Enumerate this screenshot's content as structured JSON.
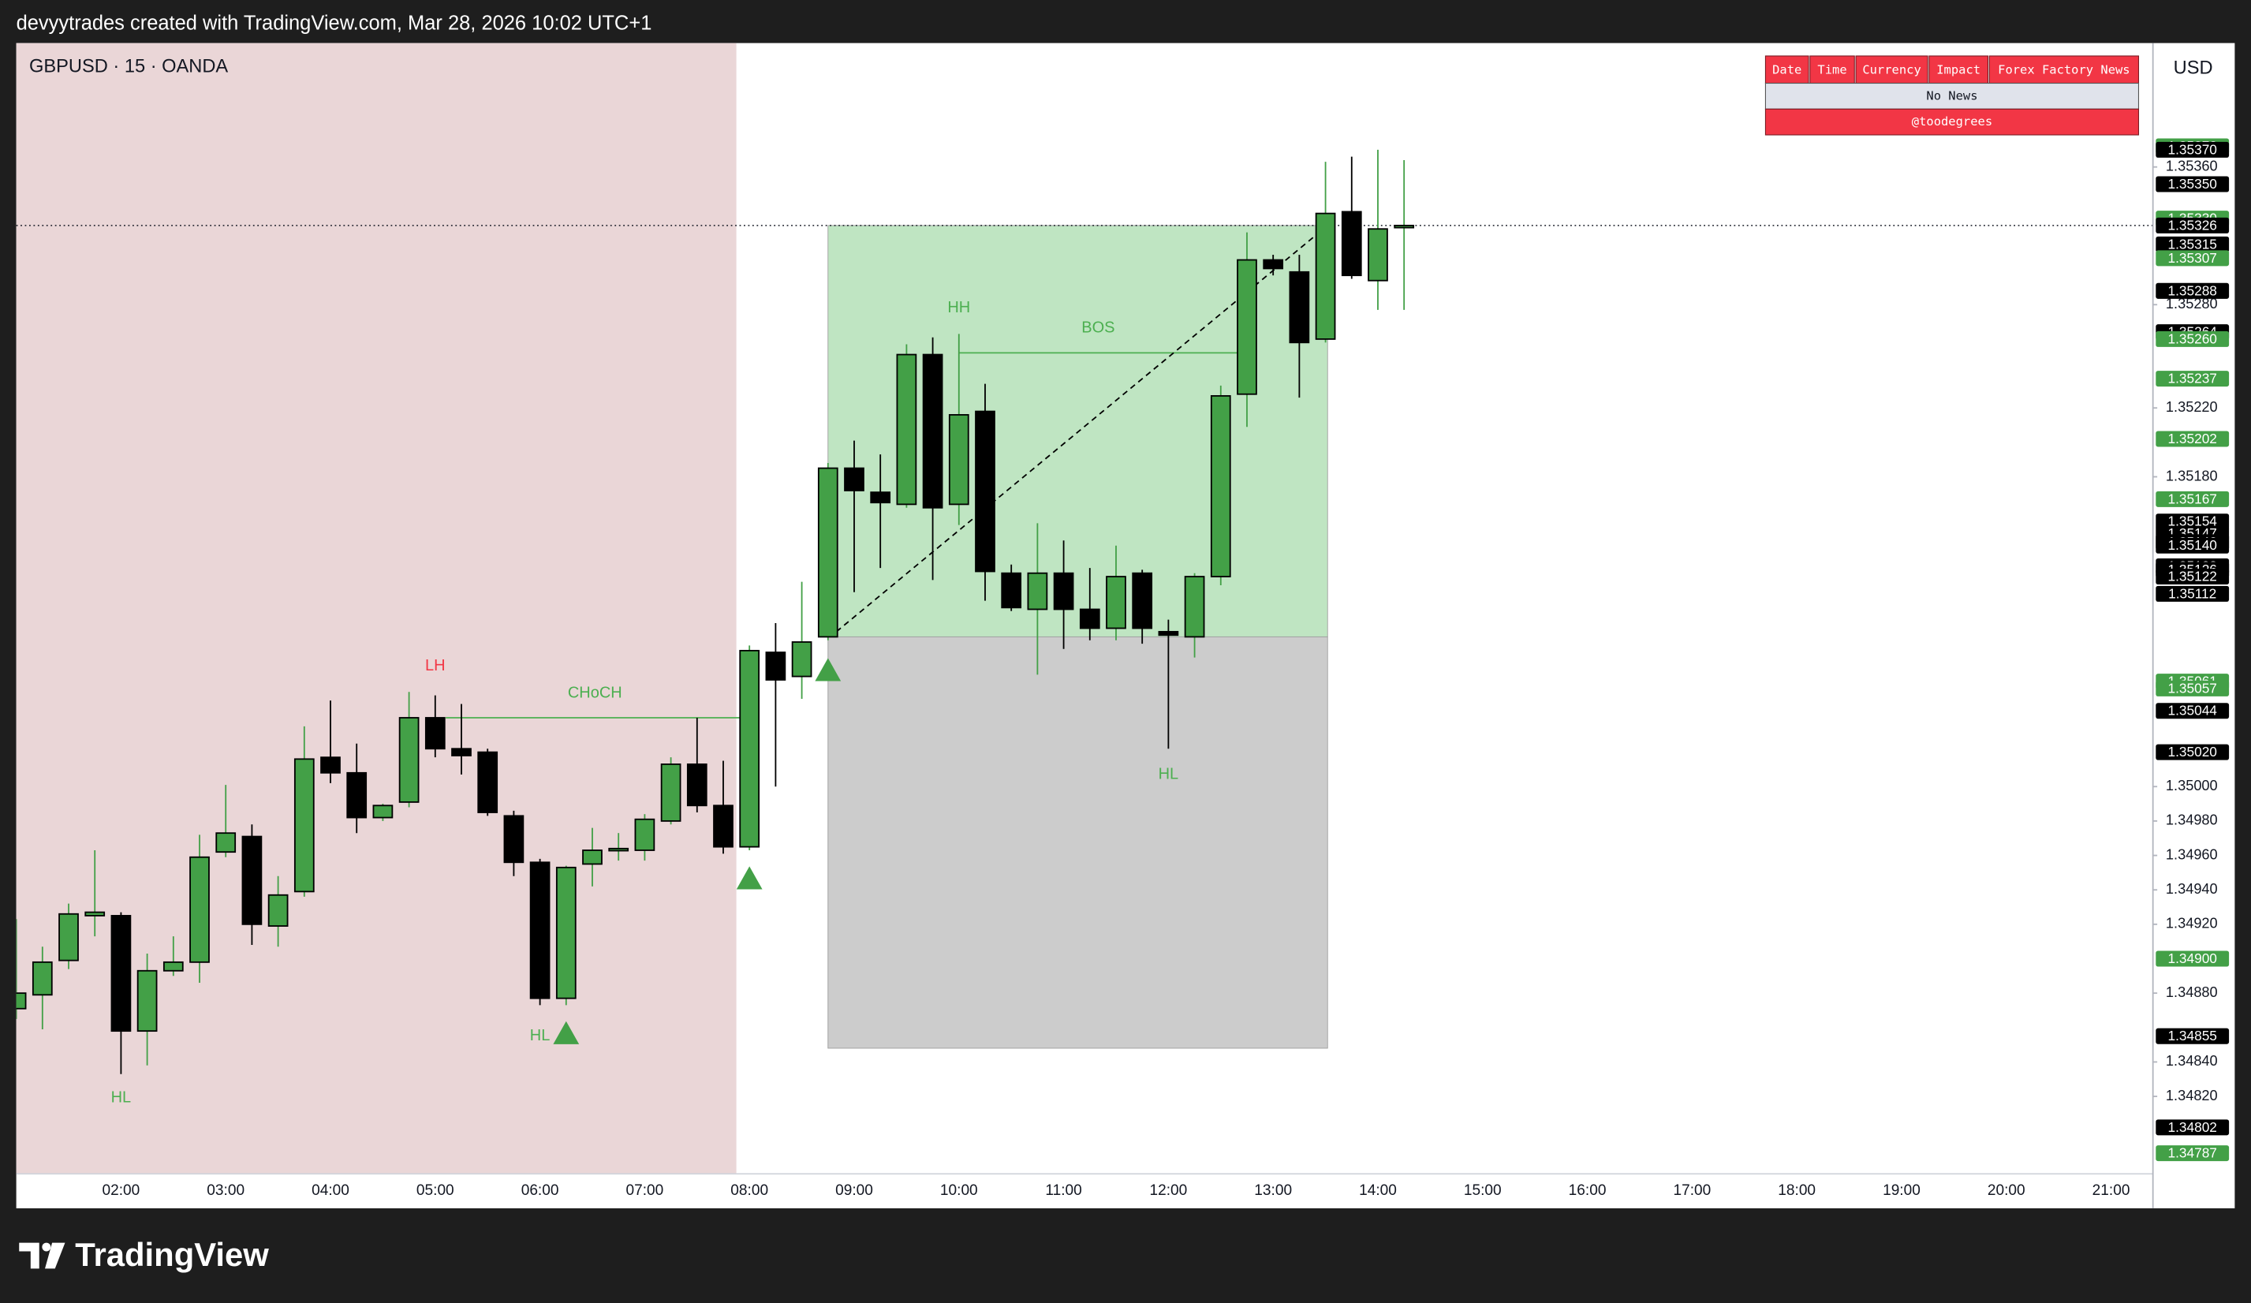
{
  "header": "devyytrades created with TradingView.com, Mar 28, 2026 10:02 UTC+1",
  "footer_brand": "TradingView",
  "news_table": {
    "header": [
      "Date",
      "Time",
      "Currency",
      "Impact",
      "Forex Factory News"
    ],
    "message": "No News",
    "credit": "@toodegrees"
  },
  "chart_data": {
    "type": "candlestick",
    "title": "GBPUSD · 15 · OANDA",
    "currency": "USD",
    "up_color": "#43a047",
    "down_color": "#000000",
    "grid": false,
    "xlim": [
      1,
      21.4
    ],
    "ylim": [
      1.34775,
      1.35432
    ],
    "xticks": [
      {
        "value": 2,
        "label": "02:00"
      },
      {
        "value": 3,
        "label": "03:00"
      },
      {
        "value": 4,
        "label": "04:00"
      },
      {
        "value": 5,
        "label": "05:00"
      },
      {
        "value": 6,
        "label": "06:00"
      },
      {
        "value": 7,
        "label": "07:00"
      },
      {
        "value": 8,
        "label": "08:00"
      },
      {
        "value": 9,
        "label": "09:00"
      },
      {
        "value": 10,
        "label": "10:00"
      },
      {
        "value": 11,
        "label": "11:00"
      },
      {
        "value": 12,
        "label": "12:00"
      },
      {
        "value": 13,
        "label": "13:00"
      },
      {
        "value": 14,
        "label": "14:00"
      },
      {
        "value": 15,
        "label": "15:00"
      },
      {
        "value": 16,
        "label": "16:00"
      },
      {
        "value": 17,
        "label": "17:00"
      },
      {
        "value": 18,
        "label": "18:00"
      },
      {
        "value": 19,
        "label": "19:00"
      },
      {
        "value": 20,
        "label": "20:00"
      },
      {
        "value": 21,
        "label": "21:00"
      }
    ],
    "yticks": [
      {
        "value": 1.3536,
        "label": "1.35360"
      },
      {
        "value": 1.3528,
        "label": "1.35280"
      },
      {
        "value": 1.3522,
        "label": "1.35220"
      },
      {
        "value": 1.3518,
        "label": "1.35180"
      },
      {
        "value": 1.35,
        "label": "1.35000"
      },
      {
        "value": 1.3498,
        "label": "1.34980"
      },
      {
        "value": 1.3496,
        "label": "1.34960"
      },
      {
        "value": 1.3494,
        "label": "1.34940"
      },
      {
        "value": 1.3492,
        "label": "1.34920"
      },
      {
        "value": 1.3488,
        "label": "1.34880"
      },
      {
        "value": 1.3484,
        "label": "1.34840"
      },
      {
        "value": 1.3482,
        "label": "1.34820"
      }
    ],
    "x": [
      1,
      1.25,
      1.5,
      1.75,
      2,
      2.25,
      2.5,
      2.75,
      3,
      3.25,
      3.5,
      3.75,
      4,
      4.25,
      4.5,
      4.75,
      5,
      5.25,
      5.5,
      5.75,
      6,
      6.25,
      6.5,
      6.75,
      7,
      7.25,
      7.5,
      7.75,
      8,
      8.25,
      8.5,
      8.75,
      9,
      9.25,
      9.5,
      9.75,
      10,
      10.25,
      10.5,
      10.75,
      11,
      11.25,
      11.5,
      11.75,
      12,
      12.25,
      12.5,
      12.75,
      13,
      13.25,
      13.5,
      13.75,
      14,
      14.25
    ],
    "open": [
      1.34871,
      1.34879,
      1.34899,
      1.34925,
      1.34925,
      1.34858,
      1.34893,
      1.34898,
      1.34962,
      1.34971,
      1.34919,
      1.34939,
      1.35017,
      1.35008,
      1.34982,
      1.34991,
      1.3504,
      1.35022,
      1.3502,
      1.34983,
      1.34956,
      1.34877,
      1.34955,
      1.34963,
      1.34963,
      1.3498,
      1.35013,
      1.34989,
      1.34965,
      1.35078,
      1.35064,
      1.35087,
      1.35185,
      1.35171,
      1.35164,
      1.35251,
      1.35164,
      1.35218,
      1.35124,
      1.35103,
      1.35124,
      1.35103,
      1.35092,
      1.35124,
      1.3509,
      1.35087,
      1.35122,
      1.35228,
      1.35306,
      1.35299,
      1.3526,
      1.35334,
      1.35294,
      1.35325
    ],
    "high": [
      1.34923,
      1.34907,
      1.34932,
      1.34963,
      1.34927,
      1.34903,
      1.34913,
      1.34972,
      1.35001,
      1.34978,
      1.34948,
      1.35035,
      1.3505,
      1.35025,
      1.3499,
      1.35055,
      1.35053,
      1.35048,
      1.35022,
      1.34986,
      1.34958,
      1.34954,
      1.34976,
      1.34973,
      1.34984,
      1.35017,
      1.3504,
      1.35015,
      1.35082,
      1.35095,
      1.35119,
      1.35188,
      1.35201,
      1.35193,
      1.35257,
      1.35261,
      1.35263,
      1.35234,
      1.35129,
      1.35153,
      1.35143,
      1.35127,
      1.3514,
      1.35126,
      1.35097,
      1.35124,
      1.35233,
      1.35322,
      1.35309,
      1.35309,
      1.35363,
      1.35366,
      1.3537,
      1.35364
    ],
    "low": [
      1.34865,
      1.34859,
      1.34894,
      1.34913,
      1.34833,
      1.34838,
      1.3489,
      1.34886,
      1.34959,
      1.34908,
      1.34907,
      1.34936,
      1.35002,
      1.34973,
      1.3498,
      1.34988,
      1.35017,
      1.35007,
      1.34983,
      1.34948,
      1.34873,
      1.34873,
      1.34942,
      1.34957,
      1.34957,
      1.34978,
      1.34985,
      1.34961,
      1.34963,
      1.35,
      1.35051,
      1.35085,
      1.35113,
      1.35127,
      1.35162,
      1.3512,
      1.35152,
      1.35108,
      1.35102,
      1.35065,
      1.3508,
      1.35085,
      1.35085,
      1.35083,
      1.35022,
      1.35075,
      1.35117,
      1.35209,
      1.35297,
      1.35226,
      1.35258,
      1.35295,
      1.35277,
      1.35277
    ],
    "close": [
      1.3488,
      1.34898,
      1.34926,
      1.34927,
      1.34858,
      1.34893,
      1.34898,
      1.34959,
      1.34973,
      1.3492,
      1.34937,
      1.35016,
      1.35008,
      1.34982,
      1.34989,
      1.3504,
      1.35022,
      1.35018,
      1.34985,
      1.34956,
      1.34877,
      1.34953,
      1.34963,
      1.34964,
      1.34981,
      1.35013,
      1.34989,
      1.34965,
      1.35079,
      1.35062,
      1.35084,
      1.35185,
      1.35172,
      1.35165,
      1.35251,
      1.35162,
      1.35216,
      1.35125,
      1.35104,
      1.35124,
      1.35103,
      1.35092,
      1.35122,
      1.35092,
      1.35088,
      1.35122,
      1.35227,
      1.35306,
      1.35301,
      1.35258,
      1.35333,
      1.35297,
      1.35324,
      1.35326
    ],
    "price_labels": [
      {
        "value": 1.35372,
        "color": "#43a047"
      },
      {
        "value": 1.3537,
        "label": "1.35370",
        "color": "#000000"
      },
      {
        "value": 1.3535,
        "label": "1.35350",
        "color": "#000000"
      },
      {
        "value": 1.3533,
        "label": "1.35330",
        "color": "#43a047"
      },
      {
        "value": 1.35326,
        "color": "#000000"
      },
      {
        "value": 1.35315,
        "color": "#000000"
      },
      {
        "value": 1.35307,
        "color": "#43a047"
      },
      {
        "value": 1.35288,
        "color": "#000000"
      },
      {
        "value": 1.35264,
        "color": "#000000"
      },
      {
        "value": 1.3526,
        "label": "1.35260",
        "color": "#43a047"
      },
      {
        "value": 1.35237,
        "color": "#43a047"
      },
      {
        "value": 1.35202,
        "color": "#43a047"
      },
      {
        "value": 1.35167,
        "color": "#43a047"
      },
      {
        "value": 1.35154,
        "color": "#000000"
      },
      {
        "value": 1.35147,
        "color": "#000000"
      },
      {
        "value": 1.35142,
        "color": "#000000"
      },
      {
        "value": 1.3514,
        "label": "1.35140",
        "color": "#000000"
      },
      {
        "value": 1.35128,
        "color": "#000000"
      },
      {
        "value": 1.35126,
        "color": "#000000"
      },
      {
        "value": 1.35122,
        "color": "#000000"
      },
      {
        "value": 1.35112,
        "color": "#000000"
      },
      {
        "value": 1.35061,
        "color": "#43a047"
      },
      {
        "value": 1.35057,
        "color": "#43a047"
      },
      {
        "value": 1.35044,
        "color": "#000000"
      },
      {
        "value": 1.3502,
        "label": "1.35020",
        "color": "#000000"
      },
      {
        "value": 1.349,
        "label": "1.34900",
        "color": "#43a047"
      },
      {
        "value": 1.34855,
        "color": "#000000"
      },
      {
        "value": 1.34802,
        "color": "#000000"
      },
      {
        "value": 1.34787,
        "color": "#43a047"
      }
    ],
    "session_shade": {
      "x": [
        1,
        7.875
      ],
      "color": "#ead6d7"
    },
    "boxes": [
      {
        "x": [
          8.75,
          13.52
        ],
        "y": [
          1.35087,
          1.35326
        ],
        "color": "#bfe5c2"
      },
      {
        "x": [
          8.75,
          13.52
        ],
        "y": [
          1.34848,
          1.35087
        ],
        "color": "#cccccc"
      }
    ],
    "trend_line": {
      "x": [
        8.83,
        13.52
      ],
      "y": [
        1.3509,
        1.35326
      ]
    },
    "structure_lines": [
      {
        "label": "CHoCH",
        "x": [
          5.1,
          7.95
        ],
        "y": 1.3504,
        "color": "#4caf50"
      },
      {
        "label": "BOS",
        "x": [
          10.0,
          12.66
        ],
        "y": 1.35252,
        "color": "#4caf50"
      }
    ],
    "annotations": [
      {
        "text": "LH",
        "x": 5.0,
        "y": 1.3507,
        "color": "#f23645"
      },
      {
        "text": "HL",
        "x": 2.0,
        "y": 1.34819,
        "color": "#4caf50"
      },
      {
        "text": "HL",
        "x": 6.0,
        "y": 1.34855,
        "color": "#4caf50"
      },
      {
        "text": "HH",
        "x": 10.0,
        "y": 1.35278,
        "color": "#4caf50"
      },
      {
        "text": "HL",
        "x": 12.0,
        "y": 1.35007,
        "color": "#4caf50"
      }
    ],
    "signals": {
      "color": "#43a047",
      "points": [
        {
          "x": 6.25,
          "y": 1.34857
        },
        {
          "x": 8.0,
          "y": 1.34947
        },
        {
          "x": 8.75,
          "y": 1.35068
        }
      ]
    }
  }
}
